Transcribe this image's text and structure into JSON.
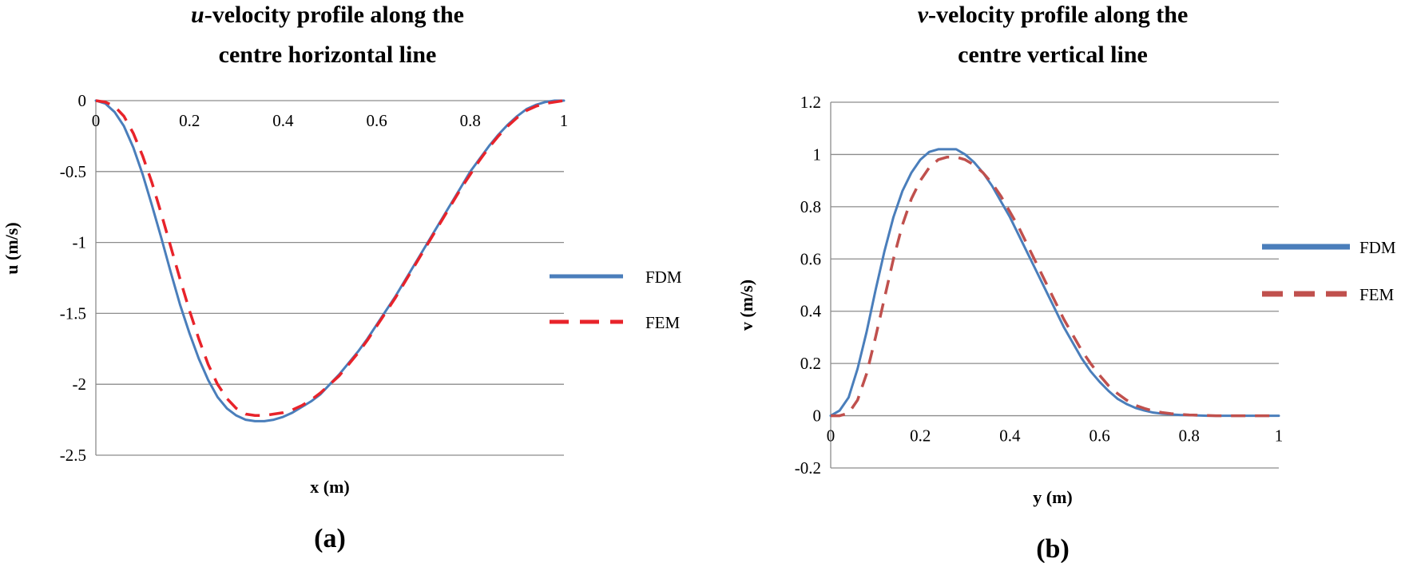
{
  "chart_data": [
    {
      "type": "line",
      "title_var": "u",
      "title_rest_line1": "-velocity profile along the",
      "title_line2": "centre horizontal line",
      "xlabel": "x (m)",
      "ylabel": "u (m/s)",
      "xlim": [
        0,
        1
      ],
      "ylim": [
        -2.5,
        0
      ],
      "xticks": [
        "0",
        "0.2",
        "0.4",
        "0.6",
        "0.8",
        "1"
      ],
      "yticks": [
        "0",
        "-0.5",
        "-1",
        "-1.5",
        "-2",
        "-2.5"
      ],
      "panel_label": "(a)",
      "series": [
        {
          "name": "FDM",
          "color": "#4a7ebb",
          "style": "solid",
          "x": [
            0,
            0.02,
            0.04,
            0.06,
            0.08,
            0.1,
            0.12,
            0.14,
            0.16,
            0.18,
            0.2,
            0.22,
            0.24,
            0.26,
            0.28,
            0.3,
            0.32,
            0.34,
            0.36,
            0.38,
            0.4,
            0.42,
            0.44,
            0.46,
            0.48,
            0.5,
            0.52,
            0.54,
            0.56,
            0.58,
            0.6,
            0.62,
            0.64,
            0.66,
            0.68,
            0.7,
            0.72,
            0.74,
            0.76,
            0.78,
            0.8,
            0.82,
            0.84,
            0.86,
            0.88,
            0.9,
            0.92,
            0.94,
            0.96,
            0.98,
            1
          ],
          "y": [
            0,
            -0.02,
            -0.08,
            -0.18,
            -0.33,
            -0.52,
            -0.74,
            -0.97,
            -1.21,
            -1.44,
            -1.64,
            -1.82,
            -1.97,
            -2.09,
            -2.17,
            -2.22,
            -2.25,
            -2.26,
            -2.26,
            -2.25,
            -2.23,
            -2.2,
            -2.16,
            -2.12,
            -2.07,
            -2.0,
            -1.93,
            -1.85,
            -1.77,
            -1.68,
            -1.58,
            -1.48,
            -1.38,
            -1.27,
            -1.16,
            -1.05,
            -0.94,
            -0.83,
            -0.72,
            -0.61,
            -0.5,
            -0.41,
            -0.32,
            -0.24,
            -0.17,
            -0.11,
            -0.06,
            -0.03,
            -0.01,
            0,
            0
          ]
        },
        {
          "name": "FEM",
          "color": "#e8232a",
          "style": "dashed",
          "x": [
            0,
            0.02,
            0.04,
            0.06,
            0.08,
            0.1,
            0.12,
            0.14,
            0.16,
            0.18,
            0.2,
            0.22,
            0.24,
            0.26,
            0.28,
            0.3,
            0.32,
            0.34,
            0.36,
            0.38,
            0.4,
            0.42,
            0.44,
            0.46,
            0.48,
            0.5,
            0.52,
            0.54,
            0.56,
            0.58,
            0.6,
            0.62,
            0.64,
            0.66,
            0.68,
            0.7,
            0.72,
            0.74,
            0.76,
            0.78,
            0.8,
            0.82,
            0.84,
            0.86,
            0.88,
            0.9,
            0.92,
            0.94,
            0.96,
            0.98,
            1
          ],
          "y": [
            0,
            -0.01,
            -0.04,
            -0.11,
            -0.23,
            -0.39,
            -0.58,
            -0.8,
            -1.03,
            -1.26,
            -1.48,
            -1.68,
            -1.86,
            -2.0,
            -2.1,
            -2.17,
            -2.21,
            -2.22,
            -2.22,
            -2.21,
            -2.2,
            -2.18,
            -2.15,
            -2.11,
            -2.06,
            -2.0,
            -1.94,
            -1.86,
            -1.78,
            -1.69,
            -1.59,
            -1.49,
            -1.39,
            -1.28,
            -1.17,
            -1.06,
            -0.95,
            -0.84,
            -0.73,
            -0.62,
            -0.52,
            -0.42,
            -0.33,
            -0.25,
            -0.18,
            -0.12,
            -0.07,
            -0.04,
            -0.02,
            -0.01,
            0
          ]
        }
      ]
    },
    {
      "type": "line",
      "title_var": "v",
      "title_rest_line1": "-velocity profile along the",
      "title_line2": "centre vertical line",
      "xlabel": "y (m)",
      "ylabel": "v (m/s)",
      "xlim": [
        0,
        1
      ],
      "ylim": [
        -0.2,
        1.2
      ],
      "xticks": [
        "0",
        "0.2",
        "0.4",
        "0.6",
        "0.8",
        "1"
      ],
      "yticks": [
        "1.2",
        "1",
        "0.8",
        "0.6",
        "0.4",
        "0.2",
        "0",
        "-0.2"
      ],
      "panel_label": "(b)",
      "series": [
        {
          "name": "FDM",
          "color": "#4a7ebb",
          "style": "solid",
          "x": [
            0,
            0.02,
            0.04,
            0.06,
            0.08,
            0.1,
            0.12,
            0.14,
            0.16,
            0.18,
            0.2,
            0.22,
            0.24,
            0.26,
            0.28,
            0.3,
            0.32,
            0.34,
            0.36,
            0.38,
            0.4,
            0.42,
            0.44,
            0.46,
            0.48,
            0.5,
            0.52,
            0.54,
            0.56,
            0.58,
            0.6,
            0.62,
            0.64,
            0.66,
            0.68,
            0.7,
            0.72,
            0.74,
            0.76,
            0.78,
            0.8,
            0.82,
            0.84,
            0.86,
            0.88,
            0.9,
            0.92,
            0.94,
            0.96,
            0.98,
            1
          ],
          "y": [
            0,
            0.02,
            0.07,
            0.18,
            0.32,
            0.48,
            0.63,
            0.76,
            0.86,
            0.93,
            0.98,
            1.01,
            1.02,
            1.02,
            1.02,
            1.0,
            0.97,
            0.93,
            0.88,
            0.82,
            0.76,
            0.69,
            0.62,
            0.55,
            0.48,
            0.41,
            0.34,
            0.28,
            0.22,
            0.17,
            0.13,
            0.095,
            0.065,
            0.045,
            0.03,
            0.02,
            0.012,
            0.008,
            0.005,
            0.003,
            0.002,
            0.001,
            0,
            0,
            0,
            0,
            0,
            0,
            0,
            0,
            0
          ]
        },
        {
          "name": "FEM",
          "color": "#c0504d",
          "style": "dashed",
          "x": [
            0,
            0.02,
            0.04,
            0.06,
            0.08,
            0.1,
            0.12,
            0.14,
            0.16,
            0.18,
            0.2,
            0.22,
            0.24,
            0.26,
            0.28,
            0.3,
            0.32,
            0.34,
            0.36,
            0.38,
            0.4,
            0.42,
            0.44,
            0.46,
            0.48,
            0.5,
            0.52,
            0.54,
            0.56,
            0.58,
            0.6,
            0.62,
            0.64,
            0.66,
            0.68,
            0.7,
            0.72,
            0.74,
            0.76,
            0.78,
            0.8,
            0.82,
            0.84,
            0.86,
            0.88,
            0.9,
            0.92,
            0.94,
            0.96,
            0.98,
            1
          ],
          "y": [
            0,
            0,
            0.01,
            0.06,
            0.16,
            0.3,
            0.45,
            0.6,
            0.73,
            0.83,
            0.9,
            0.95,
            0.98,
            0.99,
            0.99,
            0.98,
            0.96,
            0.93,
            0.89,
            0.84,
            0.78,
            0.72,
            0.65,
            0.58,
            0.51,
            0.44,
            0.37,
            0.31,
            0.25,
            0.2,
            0.155,
            0.115,
            0.085,
            0.06,
            0.04,
            0.028,
            0.018,
            0.012,
            0.008,
            0.005,
            0.003,
            0.002,
            0.001,
            0,
            0,
            0,
            0,
            0,
            0,
            0,
            0
          ]
        }
      ]
    }
  ]
}
